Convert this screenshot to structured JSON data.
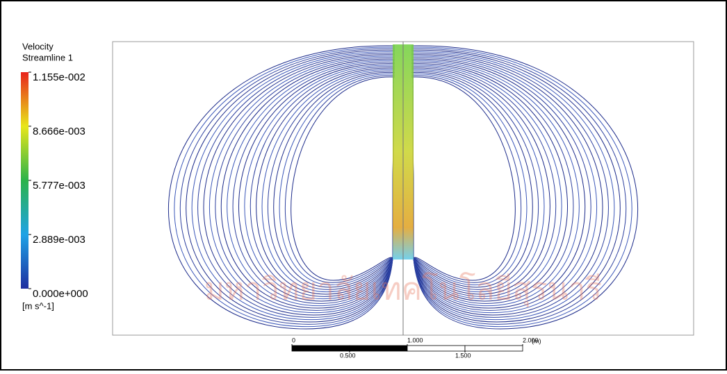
{
  "colorbar": {
    "title": "Velocity",
    "subtitle": "Streamline 1",
    "unit": "[m s^-1]",
    "range": [
      0,
      0.01155
    ],
    "ticks": [
      {
        "value": 0.01155,
        "label": "1.155e-002"
      },
      {
        "value": 0.008666,
        "label": "8.666e-003"
      },
      {
        "value": 0.005777,
        "label": "5.777e-003"
      },
      {
        "value": 0.002889,
        "label": "2.889e-003"
      },
      {
        "value": 0,
        "label": "0.000e+000"
      }
    ]
  },
  "scale_bar": {
    "unit": "(m)",
    "range": [
      0,
      2
    ],
    "upper_ticks": [
      0,
      {
        "value": 1,
        "label": "1.000"
      },
      {
        "value": 2,
        "label": "2.000"
      }
    ],
    "lower_ticks": [
      {
        "value": 0.5,
        "label": "0.500"
      },
      {
        "value": 1.5,
        "label": "1.500"
      }
    ]
  },
  "watermark": "มหาวิทยาลัยเทคโนโลยีสุรนารี"
}
